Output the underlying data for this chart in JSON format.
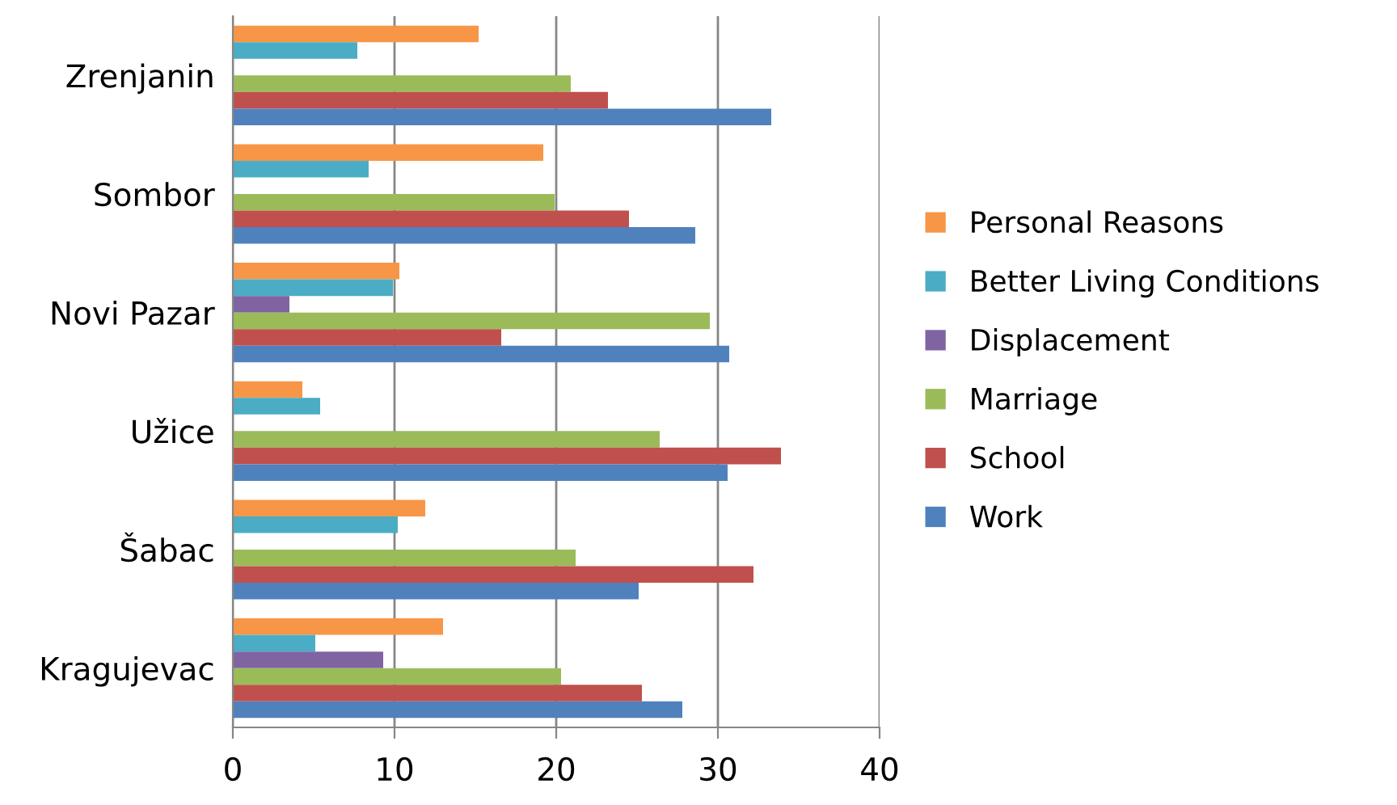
{
  "chart_data": {
    "type": "bar",
    "orientation": "horizontal",
    "categories": [
      "Zrenjanin",
      "Sombor",
      "Novi Pazar",
      "Užice",
      "Šabac",
      "Kragujevac"
    ],
    "series": [
      {
        "name": "Personal Reasons",
        "color": "#f79646",
        "values": [
          15.2,
          19.2,
          10.3,
          4.3,
          11.9,
          13.0
        ]
      },
      {
        "name": "Better Living Conditions",
        "color": "#4bacc6",
        "values": [
          7.7,
          8.4,
          9.9,
          5.4,
          10.2,
          5.1
        ]
      },
      {
        "name": "Displacement",
        "color": "#8064a2",
        "values": [
          null,
          null,
          3.5,
          null,
          null,
          9.3
        ]
      },
      {
        "name": "Marriage",
        "color": "#9bbb59",
        "values": [
          20.9,
          19.9,
          29.5,
          26.4,
          21.2,
          20.3
        ]
      },
      {
        "name": "School",
        "color": "#c0504d",
        "values": [
          23.2,
          24.5,
          16.6,
          33.9,
          32.2,
          25.3
        ]
      },
      {
        "name": "Work",
        "color": "#4f81bd",
        "values": [
          33.3,
          28.6,
          30.7,
          30.6,
          25.1,
          27.8
        ]
      }
    ],
    "xlim": [
      0,
      40
    ],
    "xticks": [
      0,
      10,
      20,
      30,
      40
    ],
    "grid": "x",
    "legend": "right"
  }
}
